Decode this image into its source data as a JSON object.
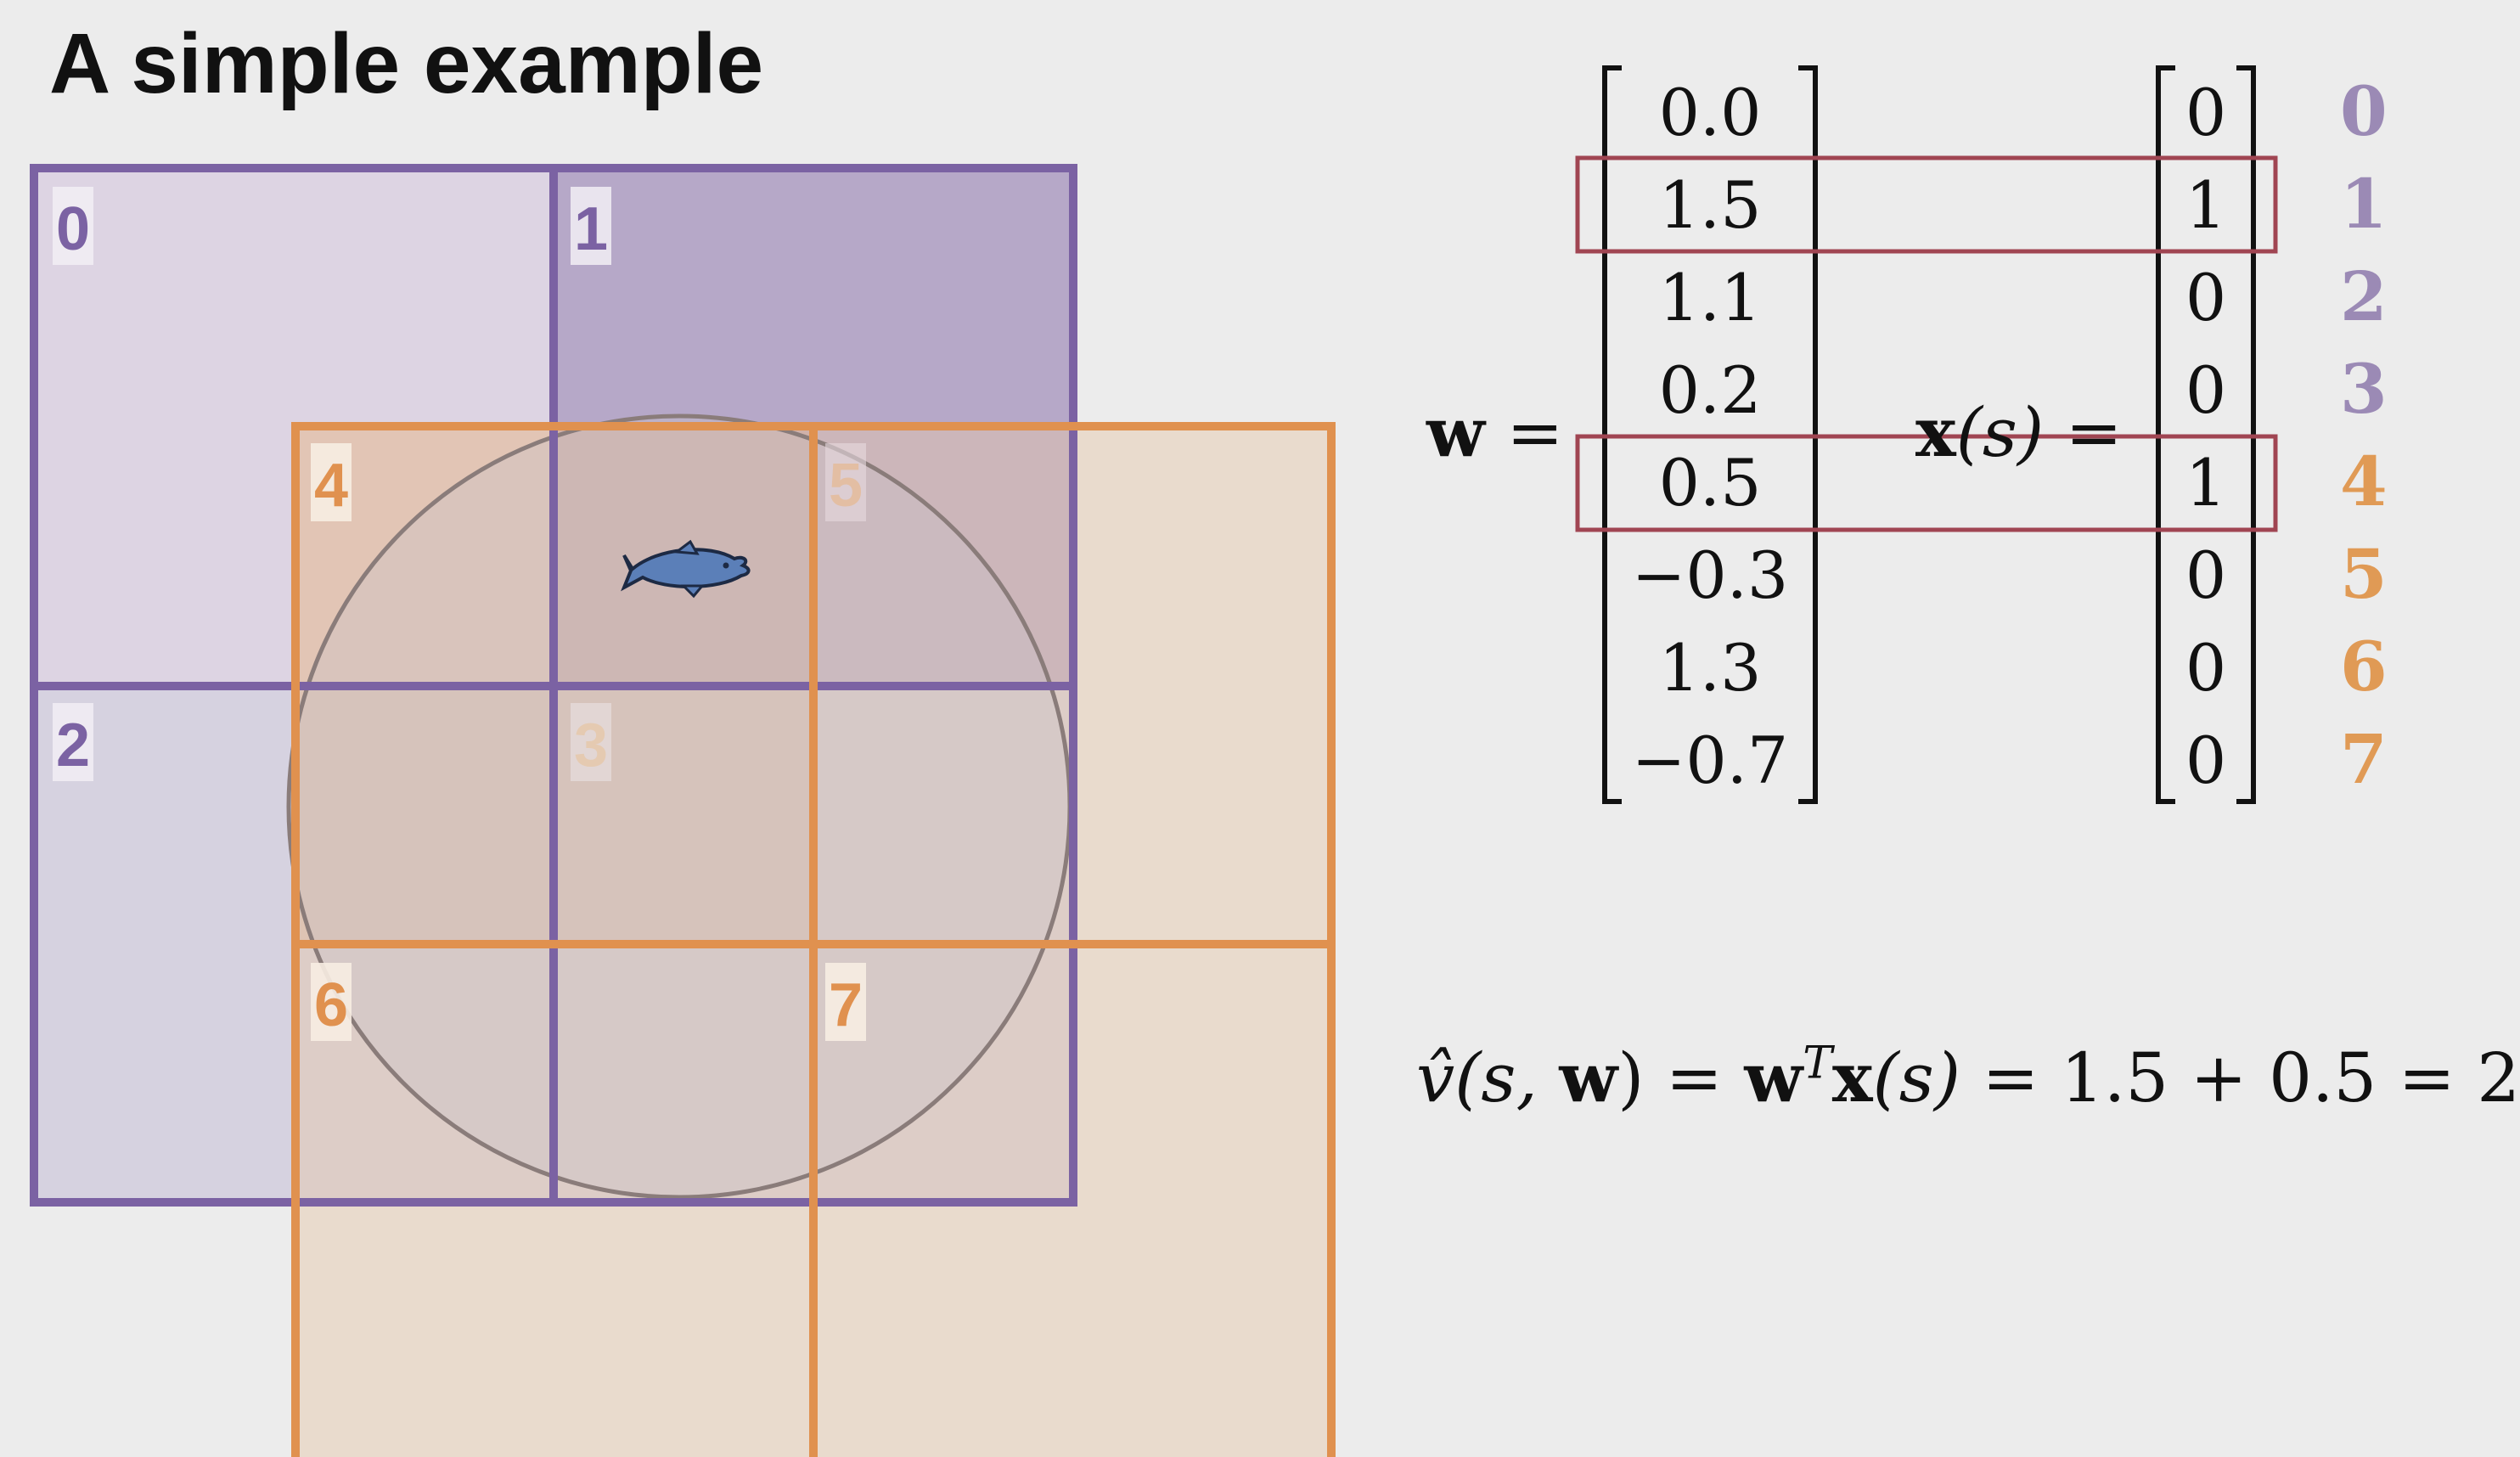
{
  "title": "A simple example",
  "colors": {
    "purple": "#7b62a3",
    "orange": "#e0914f",
    "highlight": "#a04552",
    "fish": "#5b7fb8"
  },
  "tiles": [
    {
      "label": "0",
      "group": "purple"
    },
    {
      "label": "1",
      "group": "purple"
    },
    {
      "label": "2",
      "group": "purple"
    },
    {
      "label": "3",
      "group": "purple"
    },
    {
      "label": "4",
      "group": "orange"
    },
    {
      "label": "5",
      "group": "orange"
    },
    {
      "label": "6",
      "group": "orange"
    },
    {
      "label": "7",
      "group": "orange"
    }
  ],
  "state_icon": "fish-icon",
  "equations": {
    "w_lhs": "w",
    "x_lhs_bold": "x",
    "x_lhs_arg": "(s)",
    "equals": "=",
    "w_values": [
      "0.0",
      "1.5",
      "1.1",
      "0.2",
      "0.5",
      "−0.3",
      "1.3",
      "−0.7"
    ],
    "x_values": [
      "0",
      "1",
      "0",
      "0",
      "1",
      "0",
      "0",
      "0"
    ],
    "indices": [
      "0",
      "1",
      "2",
      "3",
      "4",
      "5",
      "6",
      "7"
    ],
    "highlighted_rows": [
      1,
      4
    ],
    "value_hat": "v̂",
    "value_args_open": "(s, ",
    "value_args_w": "w",
    "value_args_close": ") = ",
    "value_w": "w",
    "value_T": "T",
    "value_x": "x",
    "value_x_arg": "(s)",
    "value_result": " = 1.5 + 0.5 = 2"
  }
}
